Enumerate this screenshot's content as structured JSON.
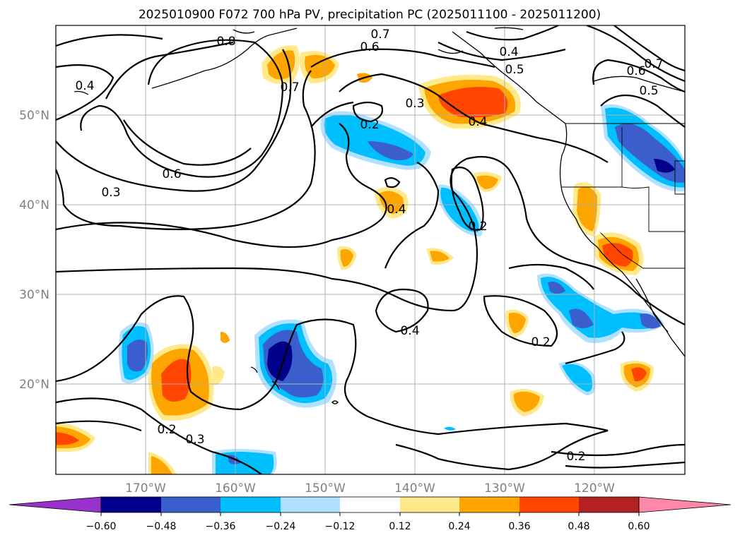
{
  "title": "2025010900 F072 700 hPa PV, precipitation PC (2025011100 - 2025011200)",
  "map": {
    "lat_labels": [
      "50°N",
      "40°N",
      "30°N",
      "20°N"
    ],
    "lon_labels": [
      "170°W",
      "160°W",
      "150°W",
      "140°W",
      "130°W",
      "120°W"
    ],
    "contour_labels": [
      "0.8",
      "0.7",
      "0.6",
      "0.4",
      "0.5",
      "0.6",
      "0.7",
      "0.5",
      "0.4",
      "0.7",
      "0.3",
      "0.2",
      "0.4",
      "0.6",
      "0.3",
      "0.4",
      "0.2",
      "0.4",
      "0.2",
      "0.2",
      "0.3",
      "0.2"
    ]
  },
  "colorbar": {
    "ticks": [
      "−0.60",
      "−0.48",
      "−0.36",
      "−0.24",
      "−0.12",
      "0.12",
      "0.24",
      "0.36",
      "0.48",
      "0.60"
    ],
    "colors": [
      "#9932cc",
      "#00008b",
      "#3a5fcd",
      "#00bfff",
      "#b0e2ff",
      "#ffffff",
      "#ffe98a",
      "#ffa500",
      "#ff4500",
      "#b22222",
      "#ff88aa"
    ]
  }
}
